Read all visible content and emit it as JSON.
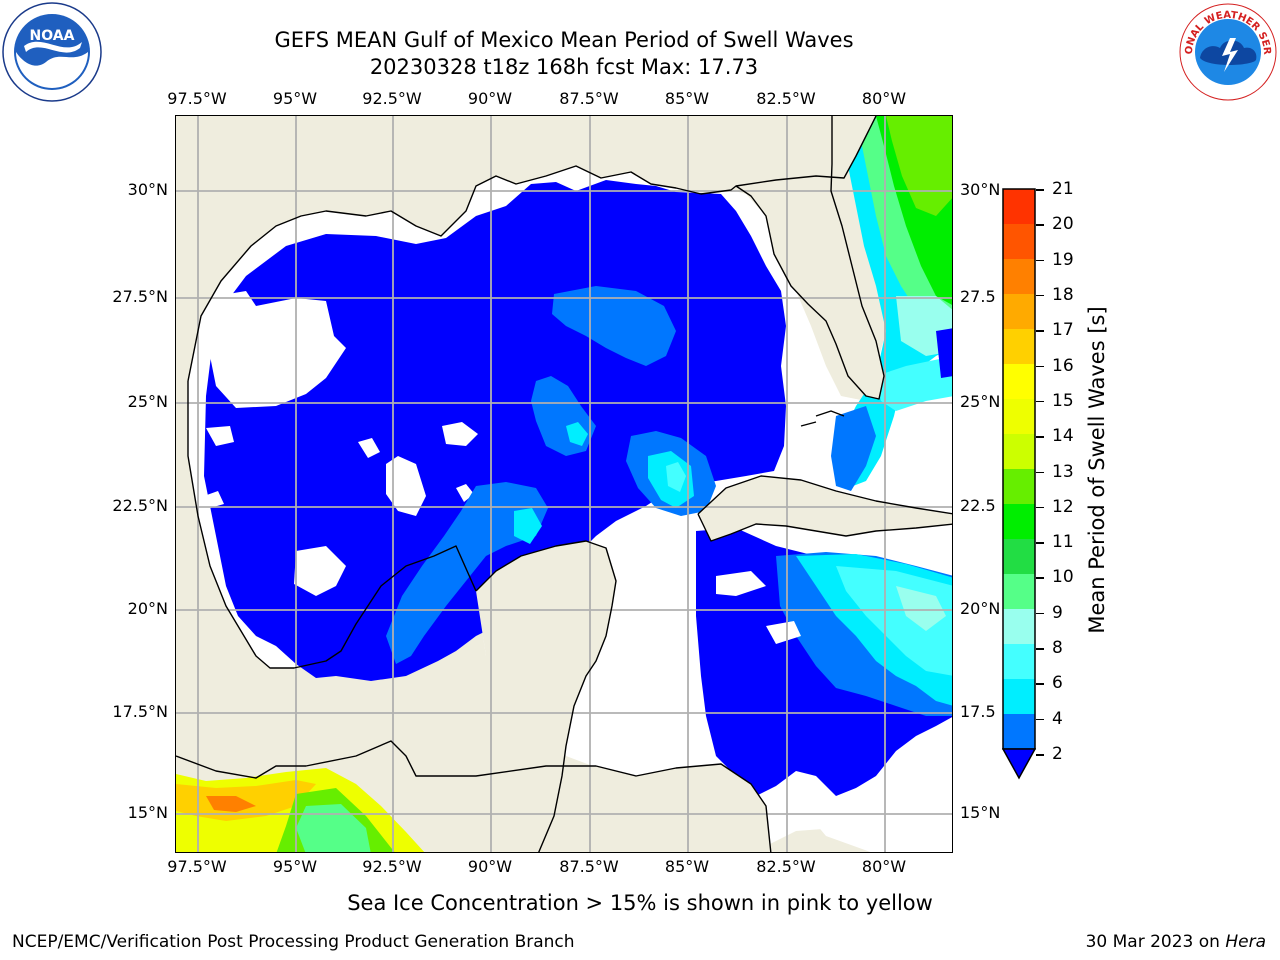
{
  "title": {
    "line1": "GEFS MEAN Gulf of Mexico Mean Period of Swell Waves",
    "line2": "20230328 t18z 168h fcst   Max: 17.73"
  },
  "axes": {
    "top_lon": [
      "97.5°W",
      "95°W",
      "92.5°W",
      "90°W",
      "87.5°W",
      "85°W",
      "82.5°W",
      "80°W"
    ],
    "bottom_lon": [
      "97.5°W",
      "95°W",
      "92.5°W",
      "90°W",
      "87.5°W",
      "85°W",
      "82.5°W",
      "80°W"
    ],
    "left_lat": [
      "30°N",
      "27.5°N",
      "25°N",
      "22.5°N",
      "20°N",
      "17.5°N",
      "15°N"
    ],
    "right_lat": [
      "30°N",
      "27.5",
      "25°N",
      "22.5",
      "20°N",
      "17.5",
      "15°N"
    ]
  },
  "colorbar": {
    "title": "Mean Period of Swell Waves [s]",
    "labels": [
      "21",
      "20",
      "19",
      "18",
      "17",
      "16",
      "15",
      "14",
      "13",
      "12",
      "11",
      "10",
      "9",
      "8",
      "6",
      "4",
      "2"
    ],
    "colors": [
      "#ff0000",
      "#ff3300",
      "#ff5500",
      "#ff8000",
      "#ffaa00",
      "#ffd000",
      "#ffff00",
      "#eeff00",
      "#ccff00",
      "#66ee00",
      "#00ee00",
      "#22dd44",
      "#55ff88",
      "#99ffee",
      "#44ffff",
      "#00eeff",
      "#0077ff",
      "#0000ff"
    ]
  },
  "map": {
    "colors": {
      "land": "#efedde",
      "water_none": "#ffffff",
      "swell_2": "#0000ff",
      "swell_4": "#0077ff",
      "swell_6": "#00eeff",
      "swell_8": "#44ffff",
      "swell_9": "#99ffee",
      "swell_10": "#55ff88",
      "swell_11": "#00ee00",
      "swell_12": "#66ee00",
      "swell_14": "#eeff00",
      "swell_16": "#ffd000",
      "swell_17": "#ff8000",
      "grid": "#b0b0b0",
      "coast": "#000000"
    }
  },
  "note": "Sea Ice Concentration > 15% is shown in pink to yellow",
  "footer": {
    "left": "NCEP/EMC/Verification Post Processing Product Generation Branch",
    "right_date": "30 Mar 2023 on ",
    "right_host": "Hera"
  },
  "logos": {
    "noaa_text": "NOAA",
    "nws_text": "NATIONAL WEATHER SERVICE"
  }
}
